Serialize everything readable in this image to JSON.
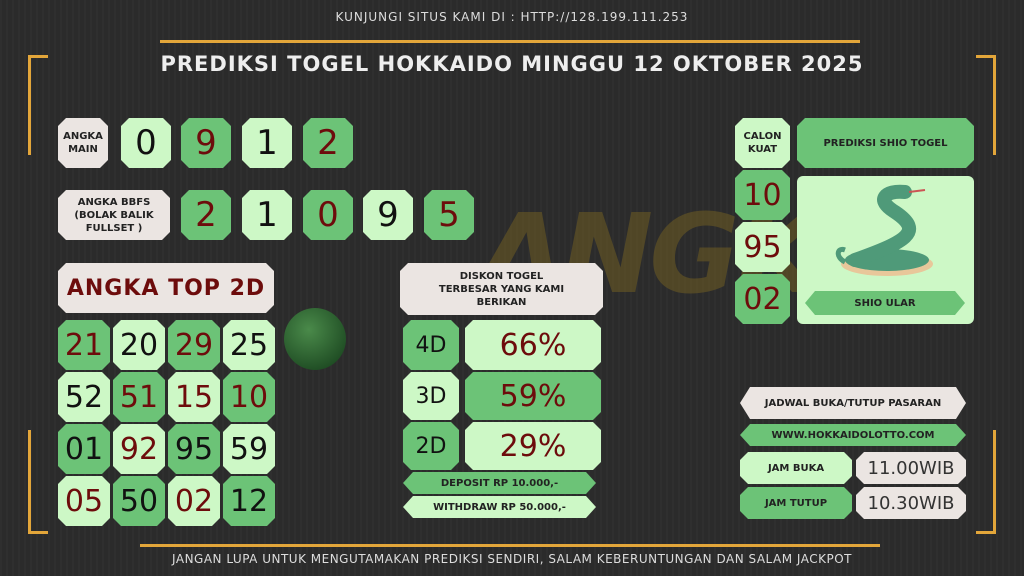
{
  "header": {
    "site_notice": "KUNJUNGI SITUS KAMI DI : HTTP://128.199.111.253",
    "title": "PREDIKSI TOGEL HOKKAIDO MINGGU 12 OKTOBER 2025"
  },
  "angka_main": {
    "label": "ANGKA MAIN",
    "digits": [
      "0",
      "9",
      "1",
      "2"
    ]
  },
  "angka_bbfs": {
    "label": "ANGKA BBFS (BOLAK BALIK FULLSET )",
    "digits": [
      "2",
      "1",
      "0",
      "9",
      "5"
    ]
  },
  "top2d": {
    "label": "ANGKA TOP 2D",
    "numbers": [
      "21",
      "20",
      "29",
      "25",
      "52",
      "51",
      "15",
      "10",
      "01",
      "92",
      "95",
      "59",
      "05",
      "50",
      "02",
      "12"
    ]
  },
  "diskon": {
    "label": "DISKON TOGEL TERBESAR YANG KAMI BERIKAN",
    "rows": [
      {
        "type": "4D",
        "value": "66%"
      },
      {
        "type": "3D",
        "value": "59%"
      },
      {
        "type": "2D",
        "value": "29%"
      }
    ],
    "deposit": "DEPOSIT RP 10.000,-",
    "withdraw": "WITHDRAW RP 50.000,-"
  },
  "calon_kuat": {
    "label": "CALON KUAT",
    "numbers": [
      "10",
      "95",
      "02"
    ]
  },
  "shio": {
    "title": "PREDIKSI SHIO TOGEL",
    "name": "SHIO ULAR",
    "icon": "snake-icon"
  },
  "jadwal": {
    "title": "JADWAL BUKA/TUTUP PASARAN",
    "website": "WWW.HOKKAIDOLOTTO.COM",
    "buka_label": "JAM BUKA",
    "buka_value": "11.00WIB",
    "tutup_label": "JAM TUTUP",
    "tutup_value": "10.30WIB"
  },
  "watermark": "ANGKA MAIN",
  "footer": "JANGAN LUPA UNTUK MENGUTAMAKAN PREDIKSI SENDIRI, SALAM KEBERUNTUNGAN DAN SALAM JACKPOT",
  "colors": {
    "dark_green": "#6cc377",
    "light_green": "#cdf8c6",
    "beige": "#ebe5e2",
    "red_text": "#6d0c0c",
    "frame": "#e3a63a"
  }
}
